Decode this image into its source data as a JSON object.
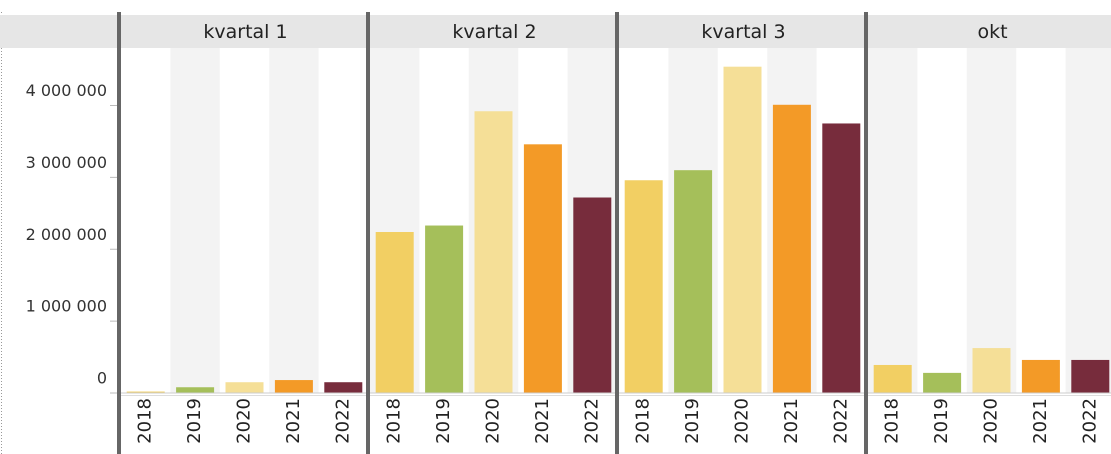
{
  "chart_data": {
    "type": "bar",
    "panels": [
      "kvartal 1",
      "kvartal 2",
      "kvartal 3",
      "okt"
    ],
    "series": [
      {
        "name": "2018",
        "color": "#f2cf63",
        "values": [
          20000,
          2240000,
          2960000,
          390000
        ]
      },
      {
        "name": "2019",
        "color": "#a5bf5a",
        "values": [
          80000,
          2330000,
          3100000,
          280000
        ]
      },
      {
        "name": "2020",
        "color": "#f5df97",
        "values": [
          150000,
          3920000,
          4540000,
          625000
        ]
      },
      {
        "name": "2021",
        "color": "#f39a27",
        "values": [
          180000,
          3460000,
          4010000,
          460000
        ]
      },
      {
        "name": "2022",
        "color": "#772c3c",
        "values": [
          150000,
          2720000,
          3750000,
          460000
        ]
      }
    ],
    "ylim": [
      0,
      4800000
    ],
    "yticks": [
      0,
      {
        "value": 1000000,
        "label": "1 000 000"
      },
      {
        "value": 2000000,
        "label": "2 000 000"
      },
      {
        "value": 3000000,
        "label": "3 000 000"
      },
      {
        "value": 4000000,
        "label": "4 000 000"
      }
    ]
  }
}
